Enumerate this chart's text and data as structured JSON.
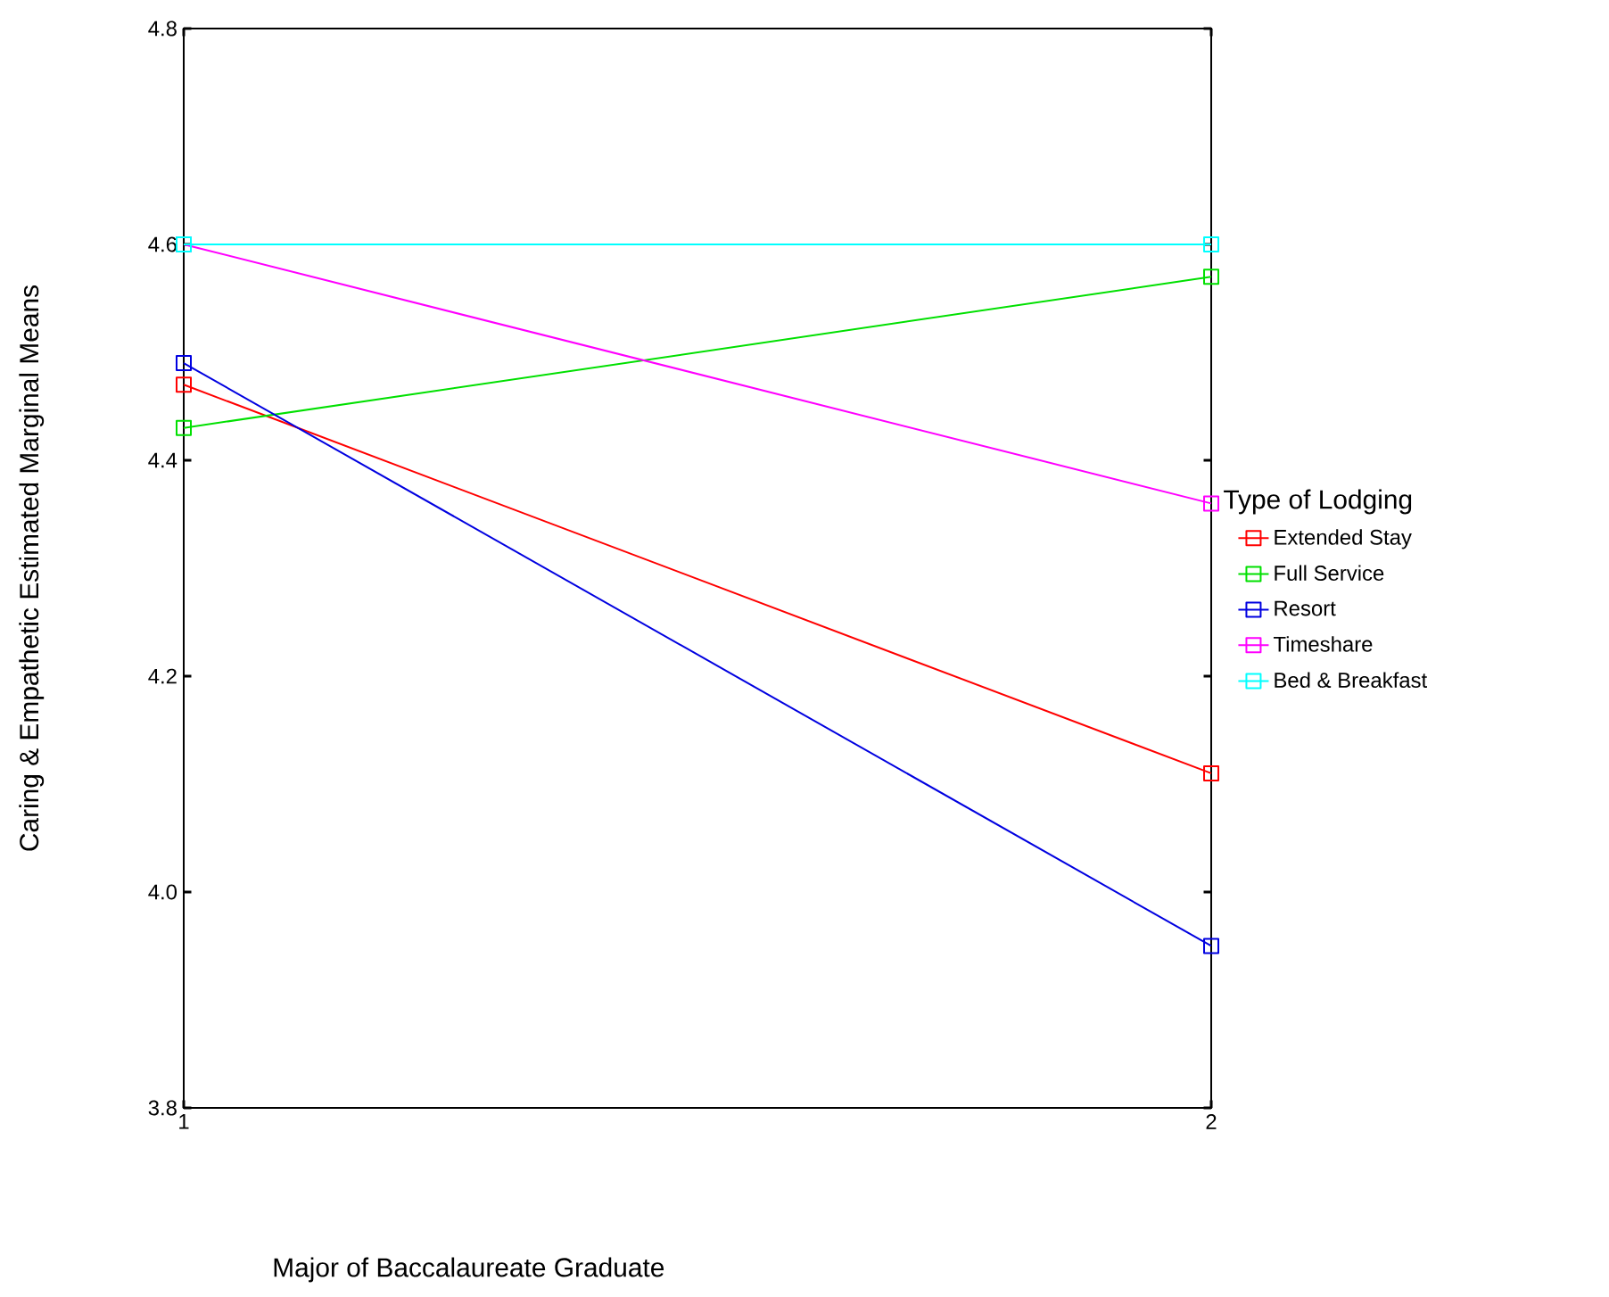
{
  "chart_data": {
    "type": "line",
    "xlabel": "Major of Baccalaureate Graduate",
    "ylabel": "Caring & Empathetic Estimated Marginal Means",
    "legend_title": "Type of Lodging",
    "x": [
      1,
      2
    ],
    "xlim": [
      1,
      2
    ],
    "xticks": [
      1,
      2
    ],
    "ylim": [
      3.8,
      4.8
    ],
    "yticks": [
      3.8,
      {
        "value": 4,
        "label": "4.0"
      },
      4.2,
      4.4,
      4.6,
      4.8
    ],
    "legend": "right",
    "grid": false,
    "marker": "square",
    "line_style": "solid",
    "series": [
      {
        "name": "Extended Stay",
        "color": "#ff0000",
        "values": [
          4.47,
          4.11
        ]
      },
      {
        "name": "Full Service",
        "color": "#00e000",
        "values": [
          4.43,
          4.57
        ]
      },
      {
        "name": "Resort",
        "color": "#0000e0",
        "values": [
          4.49,
          3.95
        ]
      },
      {
        "name": "Timeshare",
        "color": "#ff00ff",
        "values": [
          4.6,
          4.36
        ]
      },
      {
        "name": "Bed & Breakfast",
        "color": "#00ffff",
        "values": [
          4.6,
          4.6
        ]
      }
    ]
  }
}
